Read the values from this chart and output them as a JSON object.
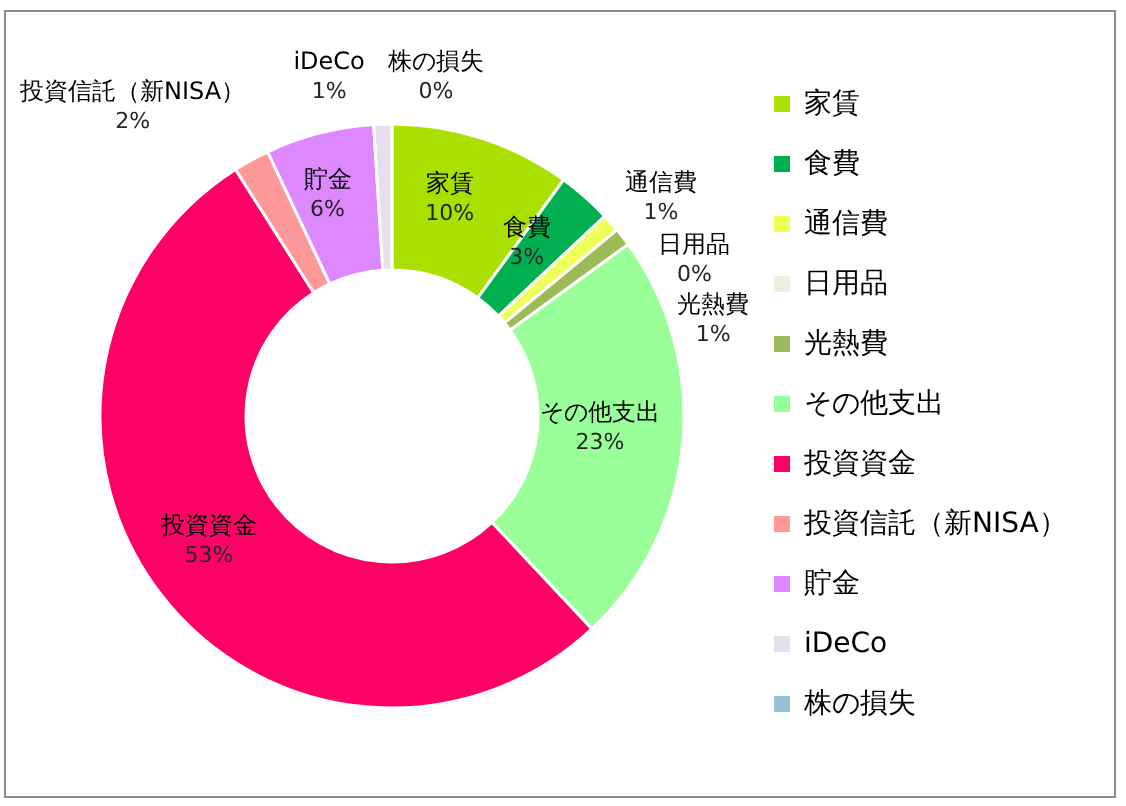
{
  "chart_data": {
    "type": "donut",
    "categories": [
      "家賃",
      "食費",
      "通信費",
      "日用品",
      "光熱費",
      "その他支出",
      "投資資金",
      "投資信託（新NISA）",
      "貯金",
      "iDeCo",
      "株の損失"
    ],
    "values": [
      10,
      3,
      1,
      0,
      1,
      23,
      53,
      2,
      6,
      1,
      0
    ],
    "colors": [
      "#a9e000",
      "#00b050",
      "#eeff5a",
      "#ebf0de",
      "#9bbb59",
      "#99ff99",
      "#ff0066",
      "#ff9999",
      "#dd88ff",
      "#e6e0ec",
      "#93c3d5"
    ],
    "value_labels": [
      "10%",
      "3%",
      "1%",
      "0%",
      "1%",
      "23%",
      "53%",
      "2%",
      "6%",
      "1%",
      "0%"
    ],
    "legend": "right"
  }
}
